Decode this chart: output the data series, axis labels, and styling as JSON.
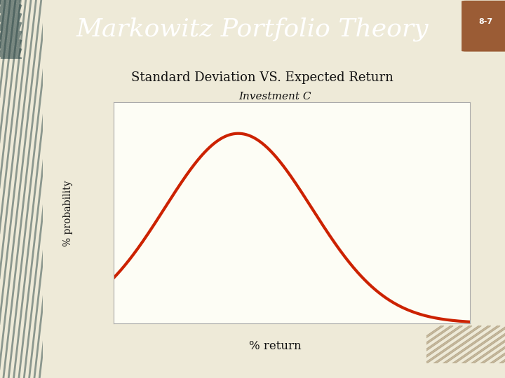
{
  "main_title": "Markowitz Portfolio Theory",
  "subtitle": "Standard Deviation VS. Expected Return",
  "curve_label": "Investment C",
  "xlabel": "% return",
  "ylabel": "% probability",
  "curve_color": "#CC2200",
  "curve_linewidth": 3.0,
  "header_bg_color": "#3d5a5a",
  "slide_bg_color": "#eeead8",
  "left_sidebar_color": "#4a6565",
  "plot_bg_color": "#fdfdf5",
  "badge_bg_color": "#9B5C35",
  "badge_text": "8-7",
  "title_color": "#ffffff",
  "subtitle_color": "#111111",
  "ylabel_color": "#111111",
  "xlabel_color": "#111111",
  "curve_label_color": "#111111",
  "curve_mean": 0.55,
  "curve_std": 0.62,
  "x_range": [
    -0.5,
    2.5
  ],
  "y_range": [
    0,
    0.75
  ],
  "bottom_stripe_color": "#3d5a5a"
}
